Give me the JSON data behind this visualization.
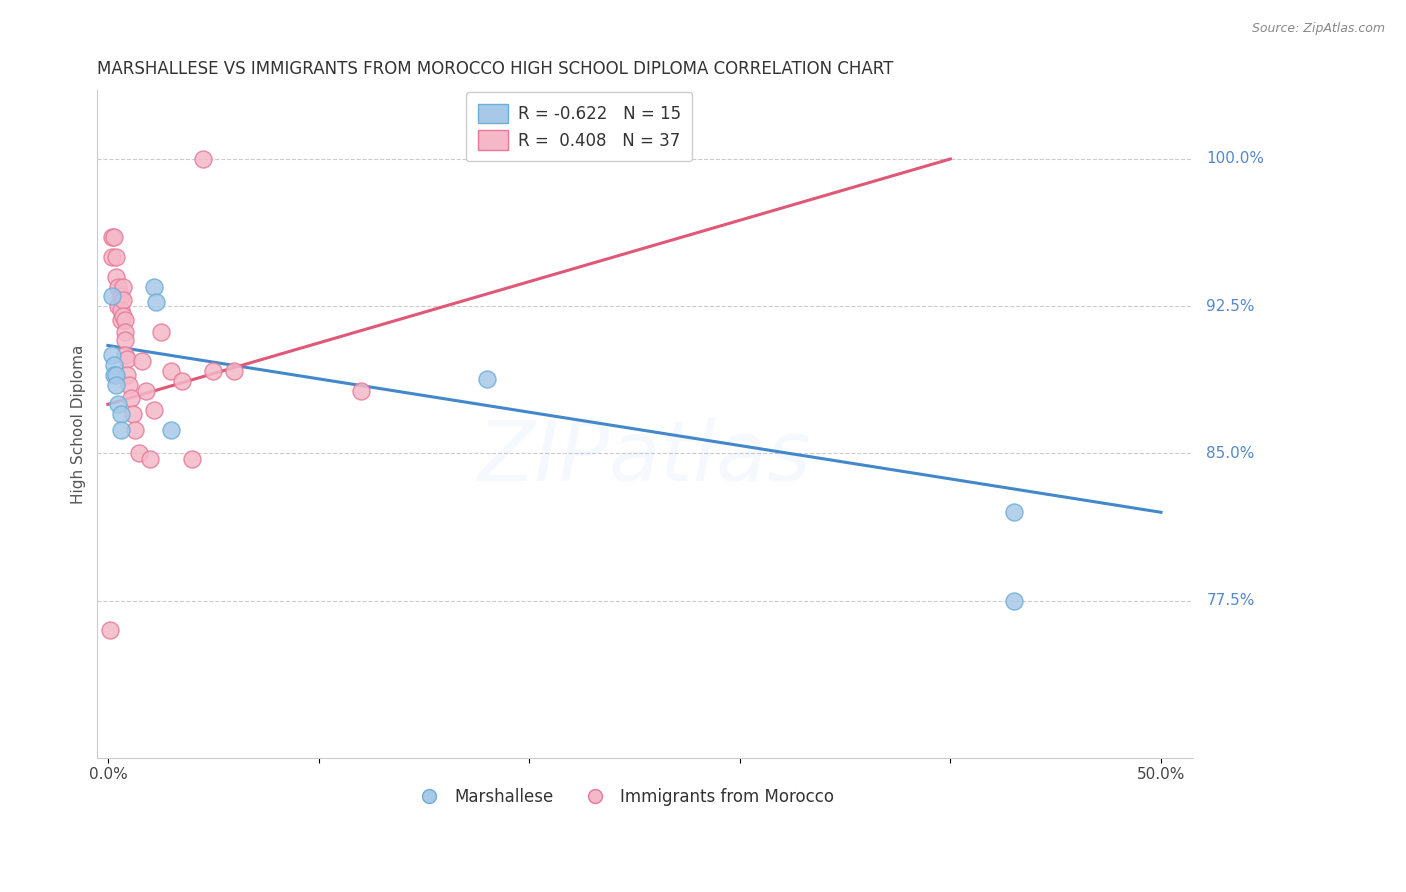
{
  "title": "MARSHALLESE VS IMMIGRANTS FROM MOROCCO HIGH SCHOOL DIPLOMA CORRELATION CHART",
  "source": "Source: ZipAtlas.com",
  "xlabel_marshallese": "Marshallese",
  "xlabel_morocco": "Immigrants from Morocco",
  "ylabel": "High School Diploma",
  "xlim_min": -0.005,
  "xlim_max": 0.515,
  "ylim_min": 0.695,
  "ylim_max": 1.035,
  "xtick_positions": [
    0.0,
    0.1,
    0.2,
    0.3,
    0.4,
    0.5
  ],
  "xtick_labels": [
    "0.0%",
    "",
    "",
    "",
    "",
    "50.0%"
  ],
  "ytick_vals": [
    1.0,
    0.925,
    0.85,
    0.775
  ],
  "ytick_lbls": [
    "100.0%",
    "92.5%",
    "85.0%",
    "77.5%"
  ],
  "blue_scatter_color": "#a8c8e8",
  "blue_edge_color": "#6baed6",
  "pink_scatter_color": "#f4b8c8",
  "pink_edge_color": "#e87898",
  "blue_line_color": "#4488cc",
  "pink_line_color": "#e05878",
  "legend_R_blue": "R = -0.622",
  "legend_N_blue": "N = 15",
  "legend_R_pink": "R =  0.408",
  "legend_N_pink": "N = 37",
  "marshallese_x": [
    0.002,
    0.002,
    0.003,
    0.003,
    0.004,
    0.004,
    0.005,
    0.006,
    0.006,
    0.022,
    0.023,
    0.03,
    0.18,
    0.43,
    0.43
  ],
  "marshallese_y": [
    0.93,
    0.9,
    0.895,
    0.89,
    0.89,
    0.885,
    0.875,
    0.87,
    0.862,
    0.935,
    0.927,
    0.862,
    0.888,
    0.82,
    0.775
  ],
  "morocco_x": [
    0.001,
    0.002,
    0.002,
    0.003,
    0.004,
    0.004,
    0.005,
    0.005,
    0.006,
    0.006,
    0.006,
    0.007,
    0.007,
    0.007,
    0.008,
    0.008,
    0.008,
    0.008,
    0.009,
    0.009,
    0.01,
    0.011,
    0.012,
    0.013,
    0.015,
    0.016,
    0.018,
    0.02,
    0.022,
    0.025,
    0.03,
    0.035,
    0.04,
    0.045,
    0.05,
    0.06,
    0.12
  ],
  "morocco_y": [
    0.76,
    0.96,
    0.95,
    0.96,
    0.95,
    0.94,
    0.935,
    0.925,
    0.93,
    0.923,
    0.918,
    0.935,
    0.928,
    0.92,
    0.918,
    0.912,
    0.908,
    0.9,
    0.898,
    0.89,
    0.885,
    0.878,
    0.87,
    0.862,
    0.85,
    0.897,
    0.882,
    0.847,
    0.872,
    0.912,
    0.892,
    0.887,
    0.847,
    1.0,
    0.892,
    0.892,
    0.882
  ],
  "blue_line_x0": 0.0,
  "blue_line_y0": 0.905,
  "blue_line_x1": 0.5,
  "blue_line_y1": 0.82,
  "pink_line_x0": 0.0,
  "pink_line_y0": 0.875,
  "pink_line_x1": 0.4,
  "pink_line_y1": 1.0,
  "watermark_text": "ZIPatlas",
  "watermark_alpha": 0.08,
  "watermark_color": "#88aadd",
  "watermark_fontsize": 60,
  "background_color": "#ffffff",
  "grid_color": "#cccccc",
  "right_label_color": "#5588cc",
  "title_color": "#333333",
  "ylabel_color": "#555555",
  "source_color": "#888888"
}
